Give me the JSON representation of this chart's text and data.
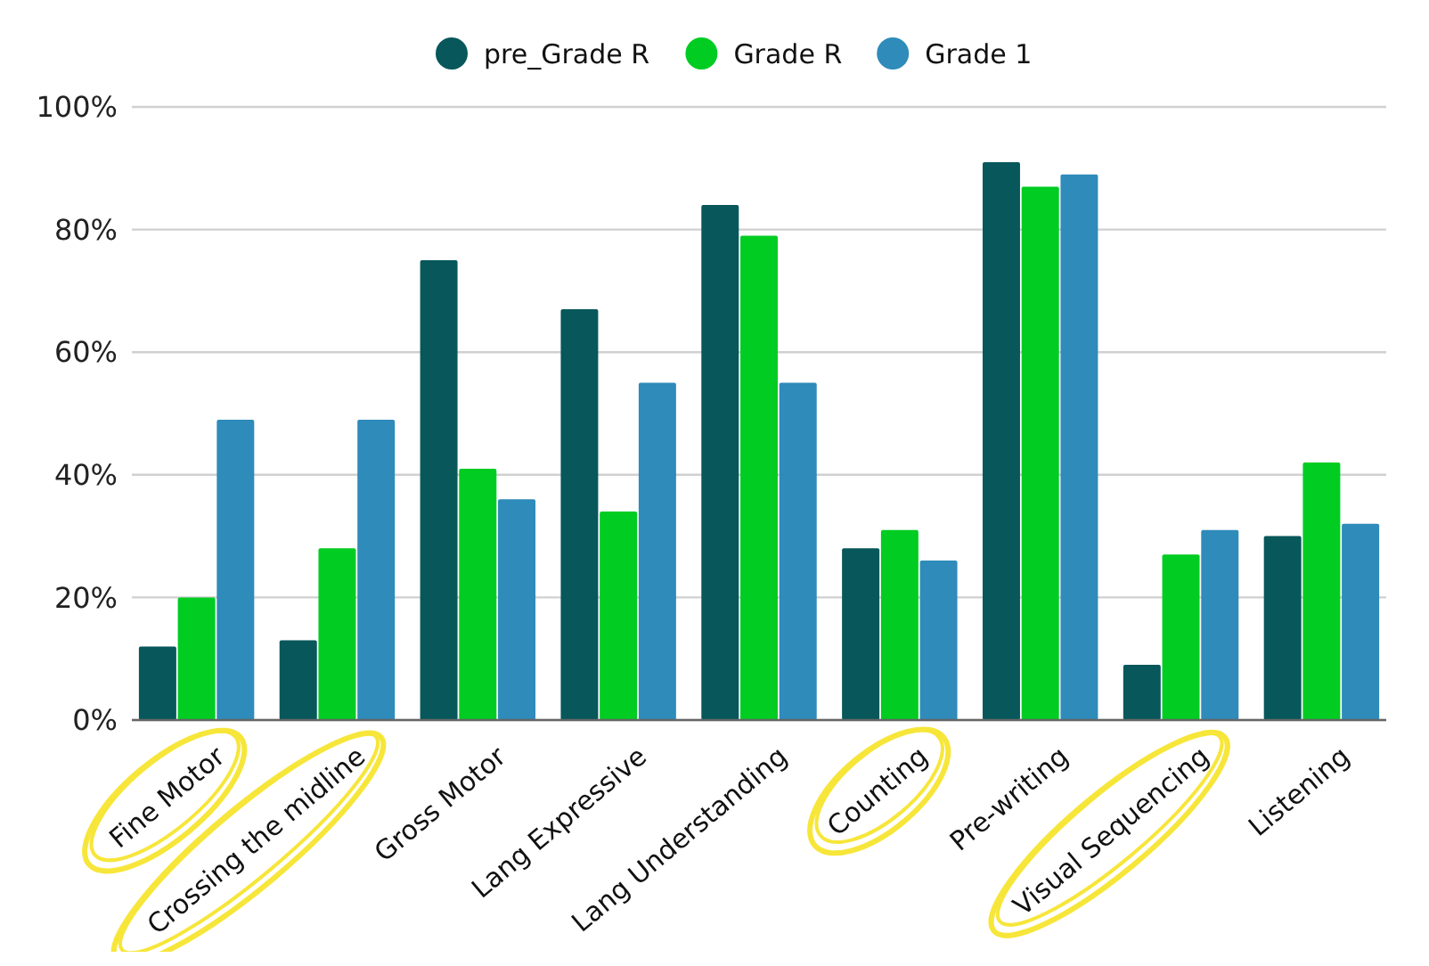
{
  "chart_data": {
    "type": "bar",
    "categories": [
      "Fine Motor",
      "Crossing the midline",
      "Gross Motor",
      "Lang Expressive",
      "Lang Understanding",
      "Counting",
      "Pre-writing",
      "Visual Sequencing",
      "Listening"
    ],
    "series": [
      {
        "name": "pre_Grade R",
        "color": "#07575b",
        "values": [
          12,
          13,
          75,
          67,
          84,
          28,
          91,
          9,
          30
        ]
      },
      {
        "name": "Grade R",
        "color": "#00cc22",
        "values": [
          20,
          28,
          41,
          34,
          79,
          31,
          87,
          27,
          42
        ]
      },
      {
        "name": "Grade 1",
        "color": "#2e8bba",
        "values": [
          49,
          49,
          36,
          55,
          55,
          26,
          89,
          31,
          32
        ]
      }
    ],
    "ylim": [
      0,
      100
    ],
    "yticks": [
      {
        "value": 0,
        "label": "0%"
      },
      {
        "value": 20,
        "label": "20%"
      },
      {
        "value": 40,
        "label": "40%"
      },
      {
        "value": 60,
        "label": "60%"
      },
      {
        "value": 80,
        "label": "80%"
      },
      {
        "value": 100,
        "label": "100%"
      }
    ],
    "grid": "y",
    "legend": "top"
  }
}
